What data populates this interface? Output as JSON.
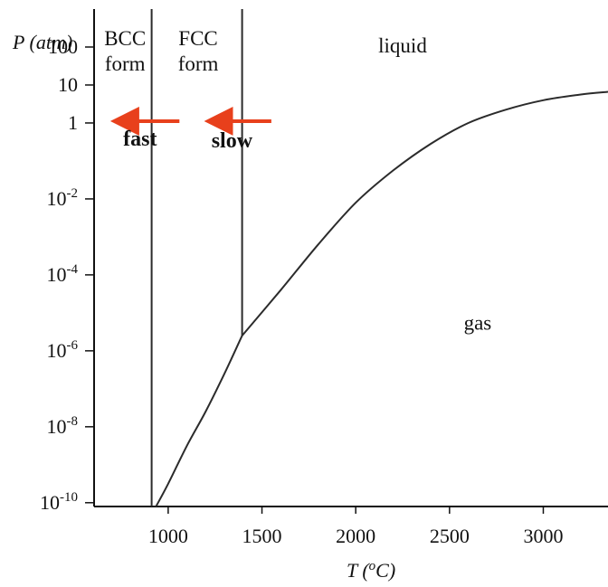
{
  "chart_data": {
    "type": "line",
    "title": "",
    "xlabel_prefix": "T (",
    "xlabel_sup": "o",
    "xlabel_suffix": "C)",
    "ylabel": "P (atm)",
    "x_ticks": [
      1000,
      1500,
      2000,
      2500,
      3000
    ],
    "y_ticks": [
      {
        "value": 100,
        "base": "100",
        "exp": ""
      },
      {
        "value": 10,
        "base": "10",
        "exp": ""
      },
      {
        "value": 1,
        "base": "1",
        "exp": ""
      },
      {
        "value": 0.01,
        "base": "10",
        "exp": "-2"
      },
      {
        "value": 0.0001,
        "base": "10",
        "exp": "-4"
      },
      {
        "value": 1e-06,
        "base": "10",
        "exp": "-6"
      },
      {
        "value": 1e-08,
        "base": "10",
        "exp": "-8"
      },
      {
        "value": 1e-10,
        "base": "10",
        "exp": "-10"
      }
    ],
    "y_scale": "log",
    "xlim": [
      605,
      3345
    ],
    "ylim_log10": [
      -10.1,
      3.0
    ],
    "phase_boundaries": [
      {
        "name": "BCC-FCC boundary",
        "points": [
          [
            912,
            -10.1
          ],
          [
            912,
            3.0
          ]
        ]
      },
      {
        "name": "FCC-BCC (delta) boundary",
        "points": [
          [
            1394,
            -5.6
          ],
          [
            1394,
            3.0
          ]
        ]
      },
      {
        "name": "sublimation curve",
        "points": [
          [
            935,
            -10.1
          ],
          [
            1000,
            -9.5
          ],
          [
            1100,
            -8.5
          ],
          [
            1200,
            -7.6
          ],
          [
            1300,
            -6.6
          ],
          [
            1394,
            -5.6
          ]
        ]
      },
      {
        "name": "vaporization curve",
        "points": [
          [
            1394,
            -5.6
          ],
          [
            1600,
            -4.4
          ],
          [
            1800,
            -3.2
          ],
          [
            2000,
            -2.1
          ],
          [
            2200,
            -1.25
          ],
          [
            2400,
            -0.55
          ],
          [
            2600,
            0.0
          ],
          [
            2800,
            0.35
          ],
          [
            3000,
            0.6
          ],
          [
            3200,
            0.75
          ],
          [
            3345,
            0.82
          ]
        ]
      }
    ],
    "regions": [
      {
        "lines": [
          "BCC",
          "form"
        ],
        "x": 770,
        "y": 1.0
      },
      {
        "lines": [
          "FCC",
          "form"
        ],
        "x": 1160,
        "y": 1.0
      },
      {
        "lines": [
          "liquid"
        ],
        "x": 2250,
        "y": 1.0
      },
      {
        "lines": [
          "gas"
        ],
        "x": 2650,
        "y": -6.3
      }
    ],
    "annotations": [
      {
        "text": "fast",
        "x": 850,
        "y": -0.5,
        "arrow_from": 1060,
        "arrow_to": 730,
        "arrow_y": 0.0
      },
      {
        "text": "slow",
        "x": 1340,
        "y": -0.55,
        "arrow_from": 1550,
        "arrow_to": 1230,
        "arrow_y": 0.0
      }
    ],
    "colors": {
      "curve": "#2b2b2b",
      "axis": "#111111",
      "arrow": "#e8401c"
    },
    "grid": false,
    "legend": "none"
  }
}
